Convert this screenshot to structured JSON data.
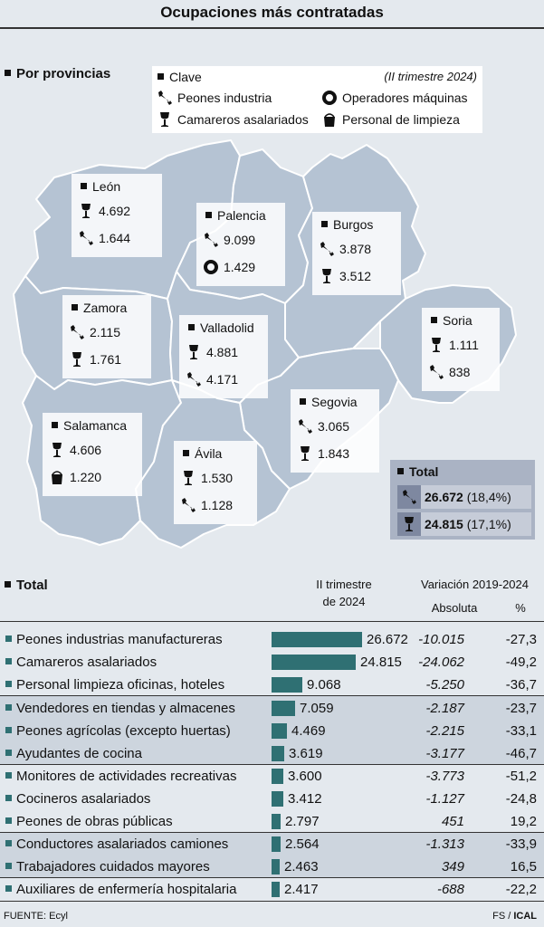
{
  "title": "Ocupaciones más contratadas",
  "map_section": {
    "heading": "Por provincias",
    "legend": {
      "clave": "Clave",
      "period": "(II trimestre 2024)",
      "items": [
        {
          "icon": "wrench-icon",
          "label": "Peones industria"
        },
        {
          "icon": "ring-icon",
          "label": "Operadores máquinas"
        },
        {
          "icon": "wine-glass-icon",
          "label": "Camareros asalariados"
        },
        {
          "icon": "bucket-icon",
          "label": "Personal de limpieza"
        }
      ]
    },
    "provinces": [
      {
        "name": "León",
        "rows": [
          {
            "icon": "wine-glass-icon",
            "value": "4.692"
          },
          {
            "icon": "wrench-icon",
            "value": "1.644"
          }
        ]
      },
      {
        "name": "Palencia",
        "rows": [
          {
            "icon": "wrench-icon",
            "value": "9.099"
          },
          {
            "icon": "ring-icon",
            "value": "1.429"
          }
        ]
      },
      {
        "name": "Burgos",
        "rows": [
          {
            "icon": "wrench-icon",
            "value": "3.878"
          },
          {
            "icon": "wine-glass-icon",
            "value": "3.512"
          }
        ]
      },
      {
        "name": "Zamora",
        "rows": [
          {
            "icon": "wrench-icon",
            "value": "2.115"
          },
          {
            "icon": "wine-glass-icon",
            "value": "1.761"
          }
        ]
      },
      {
        "name": "Valladolid",
        "rows": [
          {
            "icon": "wine-glass-icon",
            "value": "4.881"
          },
          {
            "icon": "wrench-icon",
            "value": "4.171"
          }
        ]
      },
      {
        "name": "Soria",
        "rows": [
          {
            "icon": "wine-glass-icon",
            "value": "1.111"
          },
          {
            "icon": "wrench-icon",
            "value": "838"
          }
        ]
      },
      {
        "name": "Salamanca",
        "rows": [
          {
            "icon": "wine-glass-icon",
            "value": "4.606"
          },
          {
            "icon": "bucket-icon",
            "value": "1.220"
          }
        ]
      },
      {
        "name": "Segovia",
        "rows": [
          {
            "icon": "wrench-icon",
            "value": "3.065"
          },
          {
            "icon": "wine-glass-icon",
            "value": "1.843"
          }
        ]
      },
      {
        "name": "Ávila",
        "rows": [
          {
            "icon": "wine-glass-icon",
            "value": "1.530"
          },
          {
            "icon": "wrench-icon",
            "value": "1.128"
          }
        ]
      }
    ],
    "total": {
      "label": "Total",
      "rows": [
        {
          "icon": "wrench-icon",
          "value": "26.672",
          "pct": "(18,4%)"
        },
        {
          "icon": "wine-glass-icon",
          "value": "24.815",
          "pct": "(17,1%)"
        }
      ]
    }
  },
  "table_section": {
    "heading": "Total",
    "col_period_1": "II trimestre",
    "col_period_2": "de 2024",
    "col_variation": "Variación 2019-2024",
    "col_absolute": "Absoluta",
    "col_percent": "%"
  },
  "chart_data": {
    "type": "bar",
    "orientation": "horizontal",
    "categories": [
      "Peones industrias manufactureras",
      "Camareros asalariados",
      "Personal limpieza oficinas, hoteles",
      "Vendedores en tiendas y almacenes",
      "Peones agrícolas (excepto huertas)",
      "Ayudantes de cocina",
      "Monitores de actividades recreativas",
      "Cocineros asalariados",
      "Peones de obras públicas",
      "Conductores asalariados camiones",
      "Trabajadores cuidados mayores",
      "Auxiliares de enfermería hospitalaria"
    ],
    "values": [
      26672,
      24815,
      9068,
      7059,
      4469,
      3619,
      3600,
      3412,
      2797,
      2564,
      2463,
      2417
    ],
    "value_labels": [
      "26.672",
      "24.815",
      "9.068",
      "7.059",
      "4.469",
      "3.619",
      "3.600",
      "3.412",
      "2.797",
      "2.564",
      "2.463",
      "2.417"
    ],
    "absolute_change": [
      "-10.015",
      "-24.062",
      "-5.250",
      "-2.187",
      "-2.215",
      "-3.177",
      "-3.773",
      "-1.127",
      "451",
      "-1.313",
      "349",
      "-688"
    ],
    "percent_change": [
      "-27,3",
      "-49,2",
      "-36,7",
      "-23,7",
      "-33,1",
      "-46,7",
      "-51,2",
      "-24,8",
      "19,2",
      "-33,9",
      "16,5",
      "-22,2"
    ],
    "color": "#2f7073"
  },
  "footer": {
    "source": "FUENTE: Ecyl",
    "credit_prefix": "FS / ",
    "credit_agency": "ICAL"
  },
  "colors": {
    "background": "#e4e9ee",
    "map_region": "#b5c3d3",
    "map_border": "#ffffff",
    "bar": "#2f7073",
    "band": "#cdd5de",
    "total_box": "#aab3c4"
  }
}
